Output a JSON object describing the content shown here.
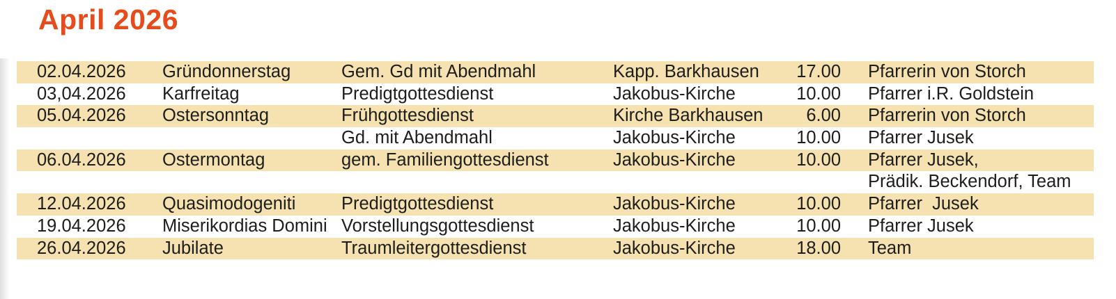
{
  "title": "April 2026",
  "colors": {
    "title_accent": "#e64b1c",
    "row_highlight": "#f6e2b1",
    "text": "#1d1d1b"
  },
  "table": {
    "columns": [
      "date",
      "day",
      "service",
      "location",
      "time",
      "leader"
    ],
    "rows": [
      {
        "date": "02.04.2026",
        "day": "Gründonnerstag",
        "service": "Gem. Gd mit Abendmahl",
        "location": "Kapp. Barkhausen",
        "time": "17.00",
        "leader": "Pfarrerin von Storch",
        "highlight": true
      },
      {
        "date": "03,04.2026",
        "day": "Karfreitag",
        "service": "Predigtgottesdienst",
        "location": "Jakobus-Kirche",
        "time": "10.00",
        "leader": "Pfarrer i.R. Goldstein",
        "highlight": false
      },
      {
        "date": "05.04.2026",
        "day": "Ostersonntag",
        "service": "Frühgottesdienst",
        "location": "Kirche Barkhausen",
        "time": "6.00",
        "leader": "Pfarrerin von Storch",
        "highlight": true
      },
      {
        "date": "",
        "day": "",
        "service": "Gd. mit Abendmahl",
        "location": "Jakobus-Kirche",
        "time": "10.00",
        "leader": "Pfarrer Jusek",
        "highlight": false
      },
      {
        "date": "06.04.2026",
        "day": "Ostermontag",
        "service": "gem. Familiengottesdienst",
        "location": "Jakobus-Kirche",
        "time": "10.00",
        "leader": "Pfarrer Jusek,",
        "highlight": true
      },
      {
        "date": "",
        "day": "",
        "service": "",
        "location": "",
        "time": "",
        "leader": "Prädik. Beckendorf, Team",
        "highlight": false
      },
      {
        "date": "12.04.2026",
        "day": "Quasimodogeniti",
        "service": "Predigtgottesdienst",
        "location": "Jakobus-Kirche",
        "time": "10.00",
        "leader": "Pfarrer  Jusek",
        "highlight": true
      },
      {
        "date": "19.04.2026",
        "day": "Miserikordias Domini",
        "service": "Vorstellungsgottesdienst",
        "location": "Jakobus-Kirche",
        "time": "10.00",
        "leader": "Pfarrer Jusek",
        "highlight": false
      },
      {
        "date": "26.04.2026",
        "day": "Jubilate",
        "service": "Traumleitergottesdienst",
        "location": "Jakobus-Kirche",
        "time": "18.00",
        "leader": "Team",
        "highlight": true
      }
    ]
  }
}
